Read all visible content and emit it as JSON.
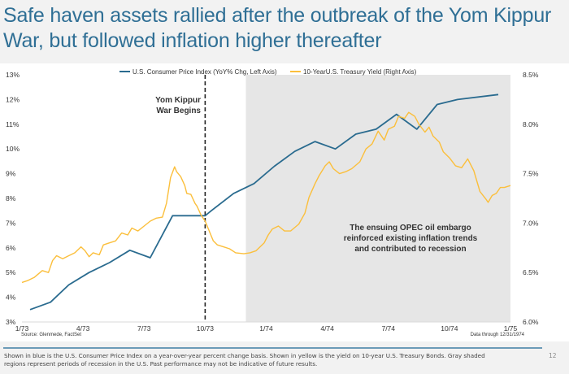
{
  "page": {
    "title": "Safe haven assets rallied after the outbreak of the Yom Kippur War, but followed inflation higher thereafter",
    "footnote": "Shown in blue is the U.S. Consumer Price Index on a year-over-year percent change basis. Shown in yellow is the yield on 10-year U.S. Treasury Bonds. Gray shaded regions represent periods of recession in the U.S. Past performance may not be indicative of future results.",
    "page_number": "12",
    "source": "Source: Glenmede, FactSet",
    "data_through": "Data through 12/31/1974"
  },
  "colors": {
    "cpi": "#2a6b8f",
    "yield": "#fbbf3c",
    "recession": "#e6e6e6",
    "title": "#2f6f95"
  },
  "chart_data": {
    "type": "line",
    "title": "",
    "xlabel": "",
    "ylabel_left": "U.S. Consumer Price Index (YoY% Chg.)",
    "ylabel_right": "10-Year U.S. Treasury Yield",
    "x_ticks": [
      "1/73",
      "4/73",
      "7/73",
      "10/73",
      "1/74",
      "4/74",
      "7/74",
      "10/74",
      "1/75"
    ],
    "x_range_months": [
      0,
      24
    ],
    "x_unit": "months since Jan 1973",
    "ylim_left": [
      3,
      13
    ],
    "yticks_left": [
      "3%",
      "4%",
      "5%",
      "6%",
      "7%",
      "8%",
      "9%",
      "10%",
      "11%",
      "12%",
      "13%"
    ],
    "ylim_right": [
      6.0,
      8.5
    ],
    "yticks_right": [
      "6.0%",
      "6.5%",
      "7.0%",
      "7.5%",
      "8.0%",
      "8.5%"
    ],
    "legend": [
      "U.S. Consumer Price Index (YoY% Chg, Left Axis)",
      "10-YearU.S. Treasury Yield (Right Axis)"
    ],
    "legend_position": "top-center",
    "grid": false,
    "series": [
      {
        "name": "U.S. Consumer Price Index (YoY% Chg, Left Axis)",
        "axis": "left",
        "x": [
          0.4,
          1.4,
          2.3,
          3.3,
          4.3,
          5.3,
          6.3,
          7.4,
          8.4,
          9.0,
          9.3,
          10.4,
          11.4,
          12.4,
          13.4,
          14.4,
          15.4,
          16.4,
          17.4,
          18.4,
          19.4,
          20.4,
          21.4,
          23.4
        ],
        "values": [
          3.5,
          3.8,
          4.5,
          5.0,
          5.4,
          5.9,
          5.6,
          7.3,
          7.3,
          7.3,
          7.5,
          8.2,
          8.6,
          9.3,
          9.9,
          10.3,
          10.0,
          10.6,
          10.8,
          11.4,
          10.8,
          11.8,
          12.0,
          12.2
        ]
      },
      {
        "name": "10-YearU.S. Treasury Yield (Right Axis)",
        "axis": "right",
        "x": [
          0.0,
          0.3,
          0.6,
          1.0,
          1.3,
          1.5,
          1.7,
          2.0,
          2.3,
          2.6,
          2.9,
          3.1,
          3.3,
          3.5,
          3.8,
          4.0,
          4.3,
          4.6,
          4.9,
          5.2,
          5.4,
          5.7,
          6.0,
          6.3,
          6.6,
          6.9,
          7.1,
          7.3,
          7.5,
          7.6,
          7.8,
          8.0,
          8.1,
          8.3,
          8.5,
          8.6,
          8.8,
          9.0,
          9.2,
          9.4,
          9.6,
          9.9,
          10.2,
          10.5,
          10.9,
          11.2,
          11.5,
          11.9,
          12.1,
          12.3,
          12.6,
          12.9,
          13.2,
          13.6,
          13.9,
          14.1,
          14.4,
          14.6,
          14.9,
          15.1,
          15.3,
          15.6,
          15.9,
          16.2,
          16.6,
          16.9,
          17.2,
          17.5,
          17.8,
          18.0,
          18.3,
          18.5,
          18.8,
          19.0,
          19.3,
          19.5,
          19.8,
          20.0,
          20.2,
          20.5,
          20.7,
          21.0,
          21.3,
          21.6,
          21.9,
          22.2,
          22.5,
          22.8,
          22.9,
          23.1,
          23.3,
          23.5,
          23.7,
          24.0
        ],
        "values": [
          6.4,
          6.42,
          6.45,
          6.52,
          6.5,
          6.62,
          6.67,
          6.64,
          6.67,
          6.7,
          6.76,
          6.72,
          6.66,
          6.7,
          6.68,
          6.78,
          6.8,
          6.82,
          6.9,
          6.88,
          6.95,
          6.92,
          6.97,
          7.02,
          7.05,
          7.06,
          7.2,
          7.46,
          7.57,
          7.52,
          7.47,
          7.38,
          7.3,
          7.29,
          7.2,
          7.17,
          7.08,
          7.02,
          6.92,
          6.82,
          6.78,
          6.76,
          6.74,
          6.7,
          6.69,
          6.7,
          6.72,
          6.8,
          6.88,
          6.94,
          6.97,
          6.92,
          6.92,
          6.99,
          7.1,
          7.26,
          7.4,
          7.48,
          7.58,
          7.62,
          7.55,
          7.5,
          7.52,
          7.55,
          7.62,
          7.75,
          7.8,
          7.93,
          7.84,
          7.95,
          7.98,
          8.08,
          8.06,
          8.12,
          8.08,
          8.0,
          7.92,
          7.97,
          7.88,
          7.82,
          7.72,
          7.66,
          7.58,
          7.56,
          7.65,
          7.53,
          7.32,
          7.24,
          7.21,
          7.28,
          7.3,
          7.36,
          7.36,
          7.38
        ]
      }
    ],
    "shaded_regions": [
      {
        "label": "Recession",
        "x_start": 11.0,
        "x_end": 24.0
      }
    ],
    "vertical_markers": [
      {
        "label": "Yom Kippur War Begins",
        "x": 9.0,
        "style": "dashed"
      }
    ],
    "annotations": [
      {
        "text_lines": [
          "Yom Kippur",
          "War Begins"
        ],
        "anchor": "left-of-marker"
      },
      {
        "text_lines": [
          "The ensuing OPEC oil embargo",
          "reinforced existing inflation trends",
          "and contributed to recession"
        ],
        "anchor": "recession-region"
      }
    ]
  }
}
